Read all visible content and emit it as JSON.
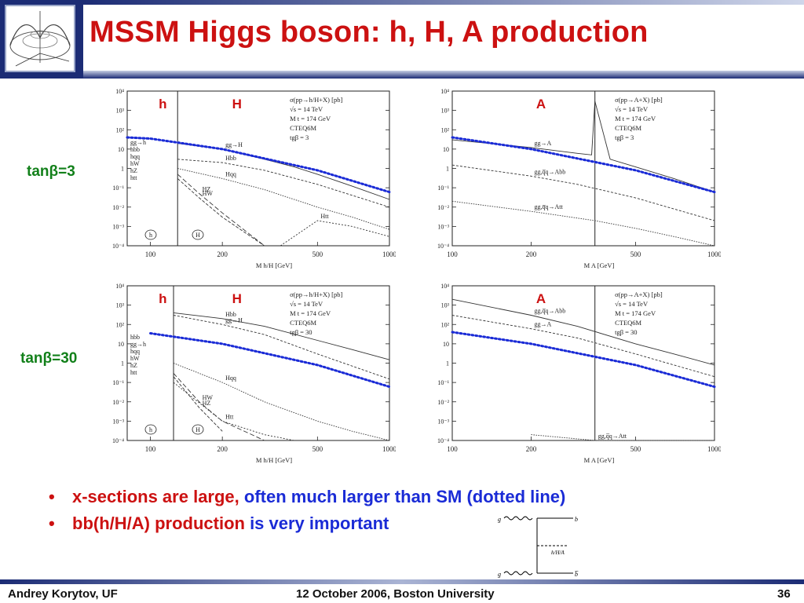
{
  "slide": {
    "title": "MSSM Higgs boson: h, H, A production",
    "footer_left": "Andrey Korytov, UF",
    "footer_center": "12 October 2006, Boston University",
    "footer_right": "36",
    "row_labels": [
      "tanβ=3",
      "tanβ=30"
    ],
    "bullets": [
      {
        "red": "x-sections are large, ",
        "blue": "often much larger than SM (dotted line)"
      },
      {
        "red": "bb(h/H/A) production ",
        "blue": "is very important"
      }
    ],
    "colors": {
      "title": "#cc1111",
      "accent_blue": "#1a2bd6",
      "tan_label": "#12801a",
      "frame": "#1c2c75"
    }
  },
  "chart_data": [
    {
      "type": "line",
      "panel": "hH-tanb3",
      "scale": "log-log",
      "xticks": [
        "100",
        "200",
        "500",
        "1000"
      ],
      "yticks": [
        "10⁻⁴",
        "10⁻³",
        "10⁻²",
        "10⁻¹",
        "1",
        "10",
        "10²",
        "10³",
        "10⁴"
      ],
      "xlim": [
        80,
        1000
      ],
      "ylim": [
        0.0001,
        10000
      ],
      "xlabel": "M h/H [GeV]",
      "region_labels": [
        "h",
        "H"
      ],
      "legend_text": [
        "σ(pp→h/H+X) [pb]",
        "√s = 14 TeV",
        "M t = 174 GeV",
        "CTEQ6M",
        "tgβ = 3"
      ],
      "markers": [
        "h",
        "H"
      ],
      "mass_boundary": 130,
      "series": [
        {
          "name": "gg→H",
          "x": [
            130,
            200,
            300,
            400,
            500,
            700,
            1000
          ],
          "y": [
            20,
            10,
            3,
            1.2,
            0.5,
            0.12,
            0.025
          ]
        },
        {
          "name": "Hbb",
          "x": [
            130,
            200,
            300,
            500,
            700,
            1000
          ],
          "y": [
            3,
            2,
            0.8,
            0.15,
            0.04,
            0.01
          ]
        },
        {
          "name": "Hqq",
          "x": [
            130,
            200,
            300,
            500,
            700,
            1000
          ],
          "y": [
            1,
            0.3,
            0.08,
            0.01,
            0.003,
            0.0007
          ]
        },
        {
          "name": "HZ",
          "x": [
            130,
            160,
            200,
            300
          ],
          "y": [
            0.5,
            0.05,
            0.005,
            0.0001
          ]
        },
        {
          "name": "HW",
          "x": [
            130,
            160,
            200,
            300
          ],
          "y": [
            0.3,
            0.03,
            0.003,
            0.0001
          ]
        },
        {
          "name": "Htt",
          "x": [
            350,
            500,
            700,
            1000
          ],
          "y": [
            0.0001,
            0.002,
            0.001,
            0.0003
          ]
        },
        {
          "name": "SM",
          "style": "dotted",
          "x": [
            80,
            100,
            200,
            500,
            1000
          ],
          "y": [
            40,
            35,
            10,
            0.8,
            0.06
          ]
        }
      ],
      "h_labels": [
        "gg→h",
        "hbb",
        "hqq",
        "hW",
        "hZ",
        "htt"
      ]
    },
    {
      "type": "line",
      "panel": "A-tanb3",
      "scale": "log-log",
      "xticks": [
        "100",
        "200",
        "500",
        "1000"
      ],
      "yticks": [
        "10⁻⁴",
        "10⁻³",
        "10⁻²",
        "10⁻¹",
        "1",
        "10",
        "10²",
        "10³",
        "10⁴"
      ],
      "xlim": [
        100,
        1000
      ],
      "ylim": [
        0.0001,
        10000
      ],
      "xlabel": "M A [GeV]",
      "region_labels": [
        "A"
      ],
      "legend_text": [
        "σ(pp→A+X) [pb]",
        "√s = 14 TeV",
        "M t = 174 GeV",
        "CTEQ6M",
        "tgβ = 3"
      ],
      "mass_boundary": 350,
      "series": [
        {
          "name": "gg→A",
          "x": [
            100,
            200,
            300,
            340,
            350,
            400,
            500,
            700,
            1000
          ],
          "y": [
            30,
            12,
            6,
            5,
            3000,
            3,
            1.2,
            0.3,
            0.06
          ]
        },
        {
          "name": "gg,q̅q→Abb",
          "x": [
            100,
            200,
            300,
            500,
            700,
            1000
          ],
          "y": [
            1.5,
            0.4,
            0.15,
            0.03,
            0.008,
            0.002
          ]
        },
        {
          "name": "gg,q̅q→Att",
          "x": [
            100,
            200,
            350,
            500,
            700,
            1000
          ],
          "y": [
            0.02,
            0.006,
            0.002,
            0.0008,
            0.0003,
            0.0001
          ]
        },
        {
          "name": "SM",
          "style": "dotted",
          "x": [
            100,
            200,
            500,
            1000
          ],
          "y": [
            40,
            10,
            0.8,
            0.06
          ]
        }
      ]
    },
    {
      "type": "line",
      "panel": "hH-tanb30",
      "scale": "log-log",
      "xticks": [
        "100",
        "200",
        "500",
        "1000"
      ],
      "yticks": [
        "10⁻⁴",
        "10⁻³",
        "10⁻²",
        "10⁻¹",
        "1",
        "10",
        "10²",
        "10³",
        "10⁴"
      ],
      "xlim": [
        80,
        1000
      ],
      "ylim": [
        0.0001,
        10000
      ],
      "xlabel": "M h/H [GeV]",
      "region_labels": [
        "h",
        "H"
      ],
      "legend_text": [
        "σ(pp→h/H+X) [pb]",
        "√s = 14 TeV",
        "M t = 174 GeV",
        "CTEQ6M",
        "tgβ = 30"
      ],
      "markers": [
        "h",
        "H"
      ],
      "mass_boundary": 125,
      "series": [
        {
          "name": "Hbb",
          "x": [
            125,
            200,
            300,
            500,
            700,
            1000
          ],
          "y": [
            400,
            200,
            80,
            15,
            5,
            1.5
          ]
        },
        {
          "name": "gg→H",
          "x": [
            125,
            200,
            300,
            500,
            700,
            1000
          ],
          "y": [
            300,
            100,
            30,
            3,
            0.7,
            0.15
          ]
        },
        {
          "name": "Hqq",
          "x": [
            125,
            200,
            300,
            500,
            700,
            1000
          ],
          "y": [
            1,
            0.1,
            0.01,
            0.001,
            0.0003,
            0.0001
          ]
        },
        {
          "name": "HW",
          "x": [
            125,
            160,
            200,
            300
          ],
          "y": [
            0.3,
            0.01,
            0.001,
            0.0001
          ]
        },
        {
          "name": "HZ",
          "x": [
            125,
            160,
            200
          ],
          "y": [
            0.2,
            0.005,
            0.0003
          ]
        },
        {
          "name": "Htt",
          "x": [
            125,
            200,
            300,
            400
          ],
          "y": [
            0.1,
            0.001,
            0.0002,
            0.0001
          ]
        },
        {
          "name": "SM",
          "style": "dotted",
          "x": [
            100,
            200,
            500,
            1000
          ],
          "y": [
            35,
            10,
            0.8,
            0.06
          ]
        }
      ],
      "h_labels": [
        "hbb",
        "gg→h",
        "hqq",
        "hW",
        "hZ",
        "htt"
      ]
    },
    {
      "type": "line",
      "panel": "A-tanb30",
      "scale": "log-log",
      "xticks": [
        "100",
        "200",
        "500",
        "1000"
      ],
      "yticks": [
        "10⁻⁴",
        "10⁻³",
        "10⁻²",
        "10⁻¹",
        "1",
        "10",
        "10²",
        "10³",
        "10⁴"
      ],
      "xlim": [
        100,
        1000
      ],
      "ylim": [
        0.0001,
        10000
      ],
      "xlabel": "M A [GeV]",
      "region_labels": [
        "A"
      ],
      "legend_text": [
        "σ(pp→A+X) [pb]",
        "√s = 14 TeV",
        "M t = 174 GeV",
        "CTEQ6M",
        "tgβ = 30"
      ],
      "mass_boundary": 350,
      "series": [
        {
          "name": "gg,q̅q→Abb",
          "x": [
            100,
            200,
            300,
            500,
            700,
            1000
          ],
          "y": [
            2000,
            300,
            80,
            10,
            3,
            0.8
          ]
        },
        {
          "name": "gg→A",
          "x": [
            100,
            200,
            300,
            500,
            700,
            1000
          ],
          "y": [
            300,
            60,
            20,
            3,
            0.8,
            0.2
          ]
        },
        {
          "name": "gg,q̅q→Att",
          "x": [
            200,
            350,
            500,
            700,
            1000
          ],
          "y": [
            0.0002,
            0.0001,
            0.0001,
            0.0001,
            0.0001
          ]
        },
        {
          "name": "SM",
          "style": "dotted",
          "x": [
            100,
            200,
            500,
            1000
          ],
          "y": [
            40,
            10,
            0.8,
            0.06
          ]
        }
      ]
    }
  ],
  "diagram": {
    "top_label": "b",
    "bottom_label": "b̅",
    "left_top": "g",
    "left_bottom": "g",
    "middle": "h/H/A"
  }
}
